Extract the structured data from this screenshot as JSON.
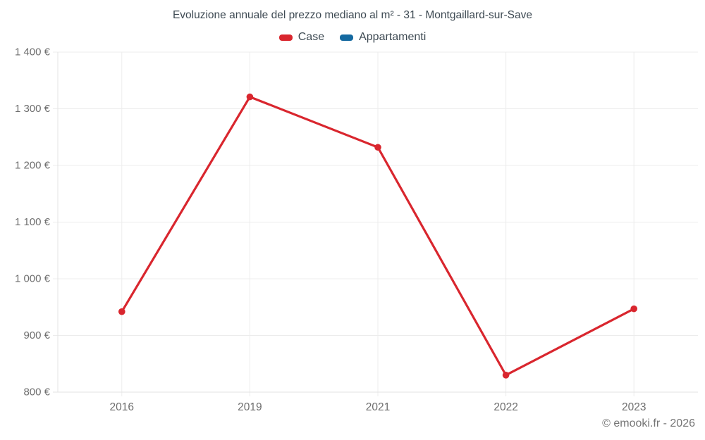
{
  "page": {
    "footer": "© emooki.fr - 2026"
  },
  "chart_data": {
    "type": "line",
    "title": "Evoluzione annuale del prezzo mediano al m² - 31 - Montgaillard-sur-Save",
    "categories": [
      "2016",
      "2019",
      "2021",
      "2022",
      "2023"
    ],
    "series": [
      {
        "name": "Case",
        "color": "#d9262e",
        "values": [
          942,
          1321,
          1232,
          830,
          947
        ]
      },
      {
        "name": "Appartamenti",
        "color": "#1469a0",
        "values": []
      }
    ],
    "xlabel": "",
    "ylabel": "",
    "ylim": [
      800,
      1400
    ],
    "ytick_step": 100,
    "ytick_labels": [
      "800 €",
      "900 €",
      "1 000 €",
      "1 100 €",
      "1 200 €",
      "1 300 €",
      "1 400 €"
    ],
    "grid": true,
    "legend_position": "top",
    "point_marker": "circle"
  },
  "colors": {
    "grid_line": "#ececec",
    "axis_line": "#e3e3e3",
    "tick_label": "#6e6e6e",
    "title_text": "#3e4a53",
    "footer_text": "#757575"
  }
}
